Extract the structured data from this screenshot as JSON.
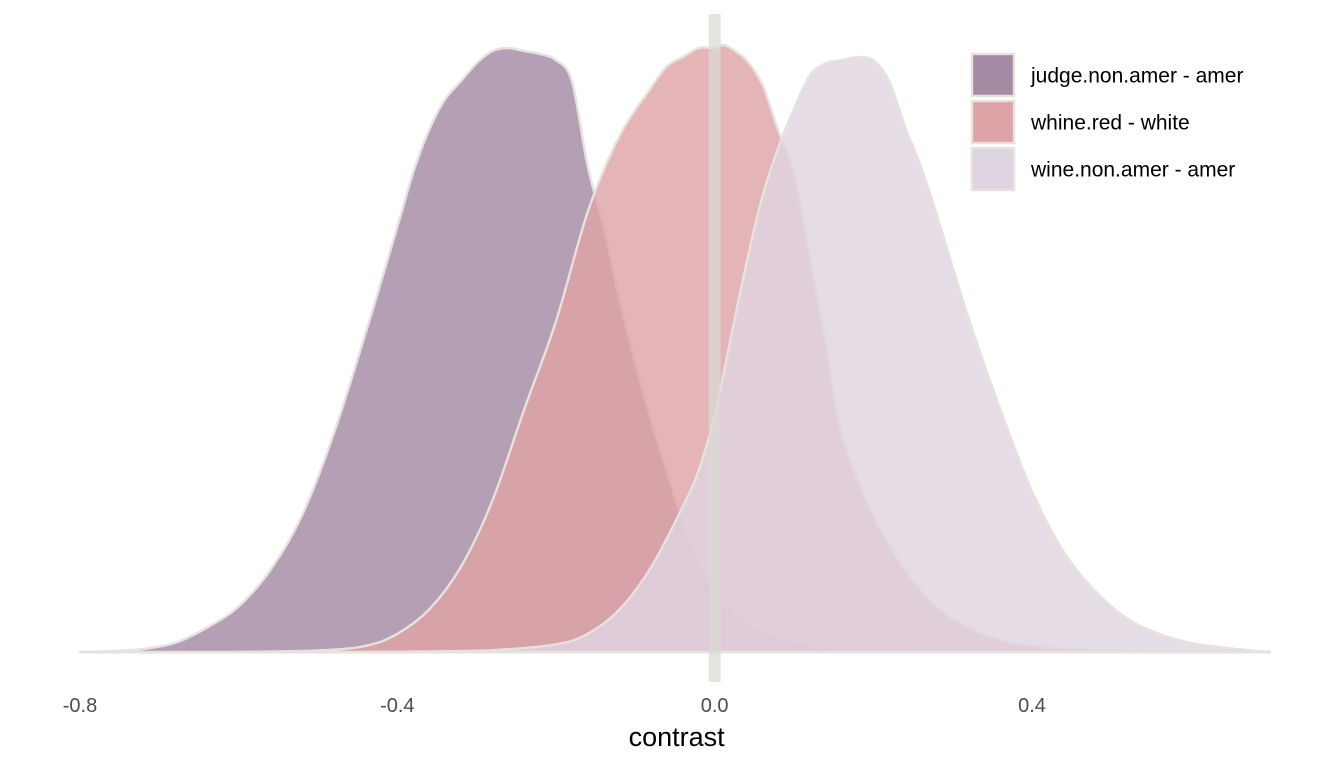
{
  "chart_data": {
    "type": "area",
    "subtype": "density",
    "title": "",
    "xlabel": "contrast",
    "ylabel": "",
    "xlim": [
      -0.8,
      0.7
    ],
    "ylim": [
      0,
      2.0
    ],
    "x_ticks": [
      -0.8,
      -0.4,
      0.0,
      0.4
    ],
    "x_tick_labels": [
      "-0.8",
      "-0.4",
      "0.0",
      "0.4"
    ],
    "grid": false,
    "reference_line": {
      "x": 0.0,
      "color": "#d9d9d2"
    },
    "legend": {
      "position": "top-right"
    },
    "series": [
      {
        "name": "judge.non.amer - amer",
        "color": "#a58aa3",
        "x": [
          -0.8,
          -0.76,
          -0.72,
          -0.68,
          -0.64,
          -0.6,
          -0.56,
          -0.52,
          -0.48,
          -0.44,
          -0.4,
          -0.38,
          -0.36,
          -0.34,
          -0.32,
          -0.3,
          -0.28,
          -0.26,
          -0.24,
          -0.22,
          -0.2,
          -0.18,
          -0.16,
          -0.14,
          -0.12,
          -0.1,
          -0.08,
          -0.06,
          -0.04,
          -0.02,
          0.0,
          0.04,
          0.08,
          0.12,
          0.16,
          0.2,
          0.24,
          0.3,
          0.36,
          0.4
        ],
        "y": [
          0.0,
          0.003,
          0.01,
          0.03,
          0.08,
          0.15,
          0.27,
          0.45,
          0.72,
          1.05,
          1.4,
          1.58,
          1.72,
          1.82,
          1.88,
          1.94,
          1.98,
          1.99,
          1.98,
          1.97,
          1.95,
          1.88,
          1.6,
          1.4,
          1.16,
          0.95,
          0.76,
          0.59,
          0.43,
          0.3,
          0.2,
          0.1,
          0.05,
          0.02,
          0.009,
          0.004,
          0.002,
          0.001,
          0.0003,
          0.0
        ]
      },
      {
        "name": "whine.red - white",
        "color": "#dea3a6",
        "x": [
          -0.6,
          -0.5,
          -0.44,
          -0.4,
          -0.36,
          -0.32,
          -0.28,
          -0.24,
          -0.2,
          -0.16,
          -0.12,
          -0.08,
          -0.06,
          -0.04,
          -0.02,
          0.0,
          0.01,
          0.02,
          0.04,
          0.06,
          0.08,
          0.1,
          0.12,
          0.14,
          0.16,
          0.2,
          0.24,
          0.28,
          0.32,
          0.36,
          0.4,
          0.46,
          0.52,
          0.58
        ],
        "y": [
          0.0,
          0.005,
          0.02,
          0.06,
          0.14,
          0.28,
          0.5,
          0.8,
          1.09,
          1.45,
          1.7,
          1.86,
          1.93,
          1.96,
          1.99,
          1.99,
          2.0,
          1.99,
          1.95,
          1.87,
          1.72,
          1.58,
          1.3,
          1.02,
          0.72,
          0.45,
          0.27,
          0.15,
          0.08,
          0.04,
          0.02,
          0.008,
          0.003,
          0.0
        ]
      },
      {
        "name": "wine.non.amer - amer",
        "color": "#dfd4e1",
        "x": [
          -0.44,
          -0.36,
          -0.28,
          -0.2,
          -0.16,
          -0.12,
          -0.08,
          -0.04,
          -0.02,
          0.0,
          0.02,
          0.04,
          0.06,
          0.08,
          0.1,
          0.12,
          0.14,
          0.16,
          0.18,
          0.2,
          0.22,
          0.24,
          0.26,
          0.28,
          0.32,
          0.36,
          0.4,
          0.44,
          0.48,
          0.52,
          0.56,
          0.6,
          0.64,
          0.68,
          0.7
        ],
        "y": [
          0.0,
          0.002,
          0.006,
          0.025,
          0.06,
          0.14,
          0.28,
          0.48,
          0.6,
          0.78,
          1.03,
          1.28,
          1.5,
          1.66,
          1.79,
          1.9,
          1.94,
          1.95,
          1.96,
          1.95,
          1.88,
          1.73,
          1.6,
          1.44,
          1.1,
          0.8,
          0.53,
          0.33,
          0.2,
          0.11,
          0.06,
          0.03,
          0.015,
          0.004,
          0.0
        ]
      }
    ]
  }
}
